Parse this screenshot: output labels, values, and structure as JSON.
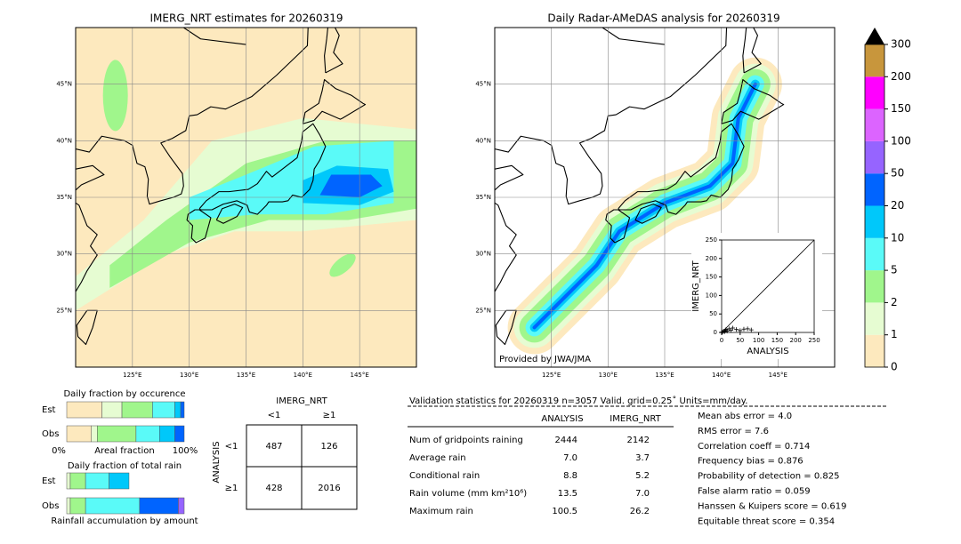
{
  "left_map": {
    "title": "IMERG_NRT estimates for 20260319",
    "extent": [
      120,
      150,
      20,
      50
    ],
    "lon_ticks": [
      {
        "value": 125,
        "label": "125°E"
      },
      {
        "value": 130,
        "label": "130°E"
      },
      {
        "value": 135,
        "label": "135°E"
      },
      {
        "value": 140,
        "label": "140°E"
      },
      {
        "value": 145,
        "label": "145°E"
      }
    ],
    "lat_ticks": [
      {
        "value": 25,
        "label": "25°N"
      },
      {
        "value": 30,
        "label": "30°N"
      },
      {
        "value": 35,
        "label": "35°N"
      },
      {
        "value": 40,
        "label": "40°N"
      },
      {
        "value": 45,
        "label": "45°N"
      }
    ]
  },
  "right_map": {
    "title": "Daily Radar-AMeDAS analysis for 20260319",
    "extent": [
      120,
      150,
      20,
      50
    ],
    "lon_ticks": [
      {
        "value": 125,
        "label": "125°E"
      },
      {
        "value": 130,
        "label": "130°E"
      },
      {
        "value": 135,
        "label": "135°E"
      },
      {
        "value": 140,
        "label": "140°E"
      },
      {
        "value": 145,
        "label": "145°E"
      }
    ],
    "lat_ticks": [
      {
        "value": 25,
        "label": "25°N"
      },
      {
        "value": 30,
        "label": "30°N"
      },
      {
        "value": 35,
        "label": "35°N"
      },
      {
        "value": 40,
        "label": "40°N"
      },
      {
        "value": 45,
        "label": "45°N"
      }
    ],
    "credit": "Provided by JWA/JMA"
  },
  "colorbar": {
    "bounds": [
      0,
      1,
      2,
      5,
      10,
      20,
      50,
      100,
      150,
      200,
      300
    ],
    "colors": [
      "#fde9be",
      "#e6fcd2",
      "#a0f68c",
      "#5afaf8",
      "#00c8fa",
      "#0064ff",
      "#9664ff",
      "#dc64ff",
      "#ff00ff",
      "#c8963c"
    ],
    "extend_color": "#000000"
  },
  "scatter": {
    "type": "scatter",
    "xlabel": "ANALYSIS",
    "ylabel": "IMERG_NRT",
    "xlim": [
      0,
      250
    ],
    "ylim": [
      0,
      250
    ],
    "xticks": [
      0,
      50,
      100,
      150,
      200,
      250
    ],
    "yticks": [
      0,
      50,
      100,
      150,
      200,
      250
    ],
    "x": [
      2,
      5,
      8,
      10,
      12,
      15,
      20,
      25,
      30,
      40,
      50,
      60,
      70,
      80
    ],
    "y": [
      1,
      3,
      2,
      5,
      8,
      4,
      10,
      6,
      12,
      8,
      5,
      9,
      10,
      7
    ]
  },
  "occurrence": {
    "title": "Daily fraction by occurence",
    "rows": [
      "Est",
      "Obs"
    ],
    "values": [
      [
        30,
        17,
        26,
        19,
        5,
        3,
        0,
        0,
        0,
        0
      ],
      [
        21,
        5,
        33,
        20,
        13,
        8,
        0,
        0,
        0,
        0
      ]
    ],
    "xmin_label": "0%",
    "xlabel": "Areal fraction",
    "xmax_label": "100%"
  },
  "total_rain": {
    "title": "Daily fraction of total rain",
    "rows": [
      "Est",
      "Obs"
    ],
    "values": [
      [
        0,
        3,
        13,
        20,
        17,
        0,
        0,
        0,
        0,
        0
      ],
      [
        0,
        3,
        13,
        46,
        0,
        33,
        5,
        0,
        0,
        0
      ]
    ],
    "xlabel": "Rainfall accumulation by amount"
  },
  "contingency": {
    "title": "IMERG_NRT",
    "col_labels": [
      "<1",
      "≥1"
    ],
    "row_title": "ANALYSIS",
    "row_labels": [
      "<1",
      "≥1"
    ],
    "cells": [
      [
        "487",
        "126"
      ],
      [
        "428",
        "2016"
      ]
    ]
  },
  "validation": {
    "title": "Validation statistics for 20260319  n=3057 Valid. grid=0.25˚ Units=mm/day.",
    "columns": [
      "ANALYSIS",
      "IMERG_NRT"
    ],
    "rows": [
      [
        "Num of gridpoints raining",
        "2444",
        "2142"
      ],
      [
        "Average rain",
        "7.0",
        "3.7"
      ],
      [
        "Conditional rain",
        "8.8",
        "5.2"
      ],
      [
        "Rain volume (mm km²10⁶)",
        "13.5",
        "7.0"
      ],
      [
        "Maximum rain",
        "100.5",
        "26.2"
      ]
    ],
    "scores": [
      "Mean abs error =    4.0",
      "RMS error =    7.6",
      "Correlation coeff =  0.714",
      "Frequency bias =  0.876",
      "Probability of detection =  0.825",
      "False alarm ratio =  0.059",
      "Hanssen & Kuipers score =  0.619",
      "Equitable threat score =  0.354"
    ]
  }
}
